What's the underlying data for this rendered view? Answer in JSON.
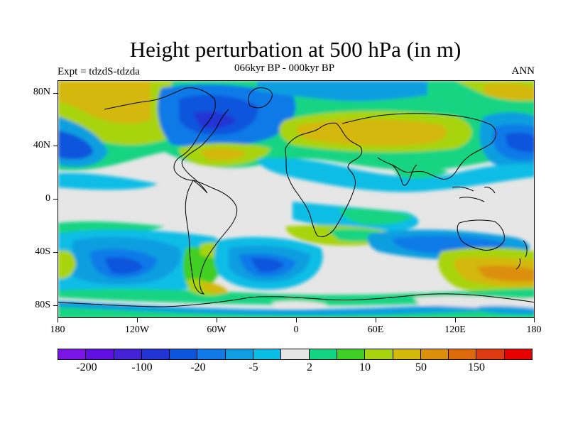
{
  "title": "Height perturbation at 500 hPa (in m)",
  "subtitle": "066kyr BP - 000kyr BP",
  "left_label": "Expt = tdzdS-tdzda",
  "right_label": "ANN",
  "y_ticks": [
    "80N",
    "40N",
    "0",
    "40S",
    "80S"
  ],
  "x_ticks": [
    "180",
    "120W",
    "60W",
    "0",
    "60E",
    "120E",
    "180"
  ],
  "colorbar": {
    "colors": [
      "#7a15e6",
      "#6010e0",
      "#4522d6",
      "#2235d4",
      "#0a55dc",
      "#0f7ae8",
      "#0f9ee0",
      "#08bde6",
      "#e6e6e6",
      "#12d482",
      "#3fcf24",
      "#a8d40f",
      "#d4b80a",
      "#dc8f0a",
      "#dc6a0a",
      "#dc3a10",
      "#e60000"
    ],
    "labels": [
      "-200",
      "-100",
      "-20",
      "-5",
      "2",
      "10",
      "50",
      "150"
    ]
  },
  "chart_data": {
    "type": "heatmap",
    "title": "Height perturbation at 500 hPa (in m)",
    "subtitle": "066kyr BP - 000kyr BP",
    "variable": "500 hPa geopotential height difference",
    "units": "m",
    "season": "ANN",
    "experiment": "tdzdS-tdzda",
    "x_range": [
      -180,
      180
    ],
    "y_range": [
      -90,
      90
    ],
    "contour_levels": [
      -200,
      -100,
      -50,
      -20,
      -10,
      -5,
      -2,
      2,
      5,
      10,
      20,
      50,
      100,
      150,
      200
    ]
  }
}
